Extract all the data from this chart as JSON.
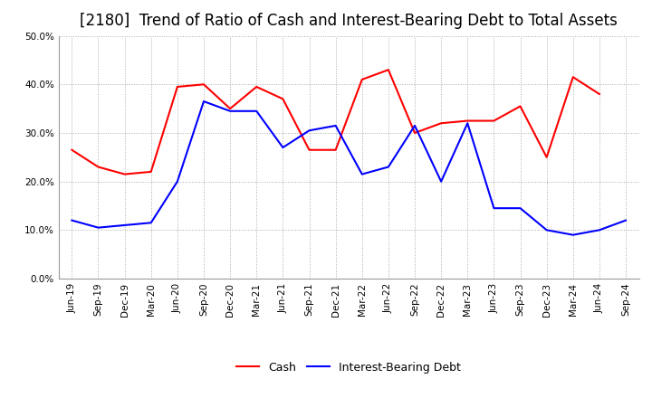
{
  "title": "[2180]  Trend of Ratio of Cash and Interest-Bearing Debt to Total Assets",
  "x_labels": [
    "Jun-19",
    "Sep-19",
    "Dec-19",
    "Mar-20",
    "Jun-20",
    "Sep-20",
    "Dec-20",
    "Mar-21",
    "Jun-21",
    "Sep-21",
    "Dec-21",
    "Mar-22",
    "Jun-22",
    "Sep-22",
    "Dec-22",
    "Mar-23",
    "Jun-23",
    "Sep-23",
    "Dec-23",
    "Mar-24",
    "Jun-24",
    "Sep-24"
  ],
  "cash": [
    26.5,
    23.0,
    21.5,
    22.0,
    39.5,
    40.0,
    35.0,
    39.5,
    37.0,
    26.5,
    26.5,
    41.0,
    43.0,
    30.0,
    32.0,
    32.5,
    32.5,
    35.5,
    25.0,
    41.5,
    38.0,
    null
  ],
  "debt": [
    12.0,
    10.5,
    11.0,
    11.5,
    20.0,
    36.5,
    34.5,
    34.5,
    27.0,
    30.5,
    31.5,
    21.5,
    23.0,
    31.5,
    20.0,
    32.0,
    14.5,
    14.5,
    10.0,
    9.0,
    10.0,
    12.0
  ],
  "cash_color": "#ff0000",
  "debt_color": "#0000ff",
  "bg_color": "#ffffff",
  "grid_color": "#aaaaaa",
  "ylim": [
    0,
    50
  ],
  "yticks": [
    0,
    10,
    20,
    30,
    40,
    50
  ],
  "title_fontsize": 12,
  "tick_fontsize": 7.5,
  "legend_labels": [
    "Cash",
    "Interest-Bearing Debt"
  ]
}
